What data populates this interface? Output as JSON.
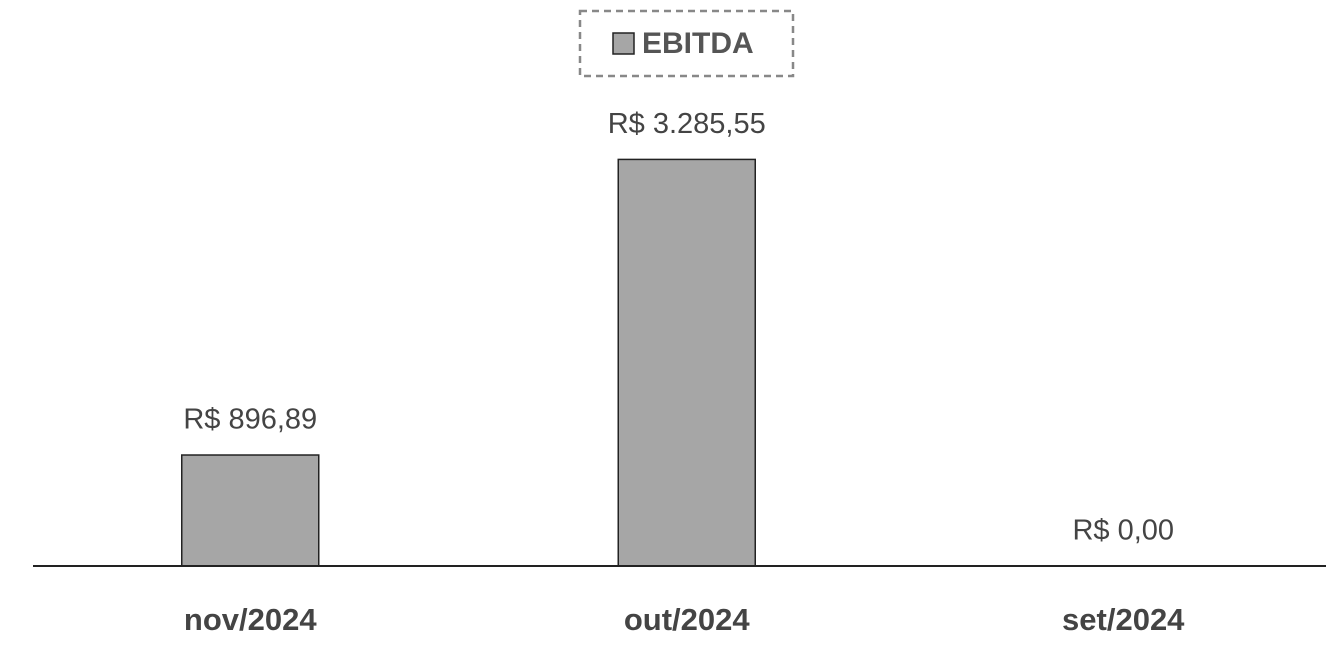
{
  "chart_data": {
    "type": "bar",
    "legend": "EBITDA",
    "categories": [
      "nov/2024",
      "out/2024",
      "set/2024"
    ],
    "values": [
      896.89,
      3285.55,
      0
    ],
    "value_labels": [
      "R$ 896,89",
      "R$ 3.285,55",
      "R$ 0,00"
    ],
    "color": "#a6a6a6",
    "ylim": [
      0,
      4000
    ]
  }
}
